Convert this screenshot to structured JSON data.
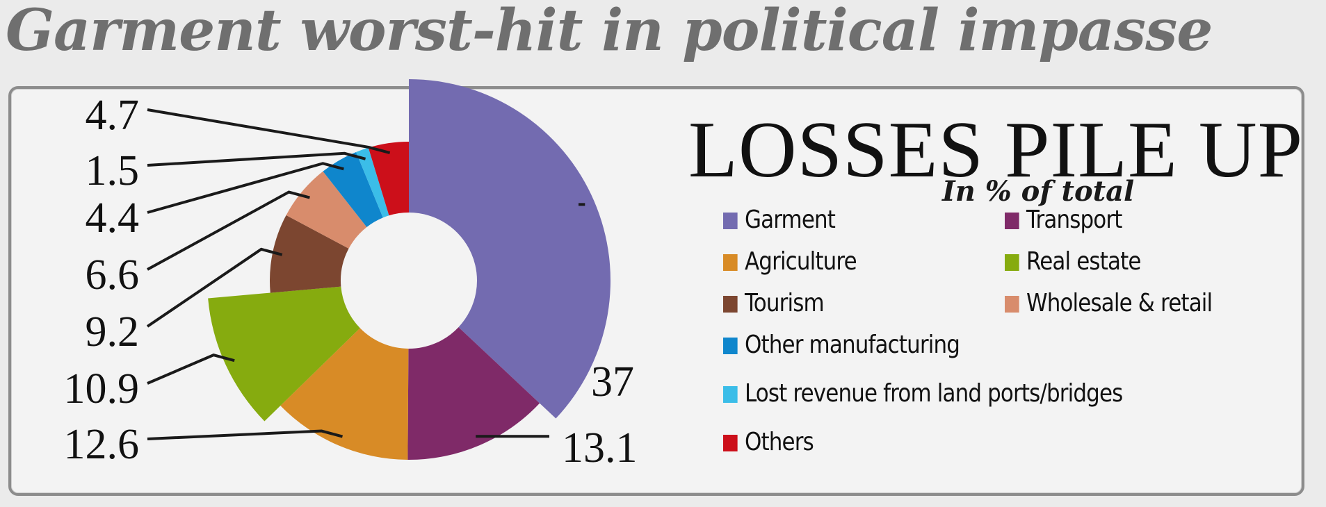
{
  "headline": "Garment worst-hit in political impasse",
  "chart_data": {
    "type": "pie",
    "title": "LOSSES PILE UP",
    "subtitle": "In % of total",
    "slices": [
      {
        "label": "Garment",
        "value": 37,
        "value_label": "37",
        "color": "#736bb0"
      },
      {
        "label": "Transport",
        "value": 13.1,
        "value_label": "13.1",
        "color": "#7f2a68"
      },
      {
        "label": "Agriculture",
        "value": 12.6,
        "value_label": "12.6",
        "color": "#d88b26"
      },
      {
        "label": "Real estate",
        "value": 10.9,
        "value_label": "10.9",
        "color": "#86ab0f"
      },
      {
        "label": "Tourism",
        "value": 9.2,
        "value_label": "9.2",
        "color": "#7c4630"
      },
      {
        "label": "Wholesale & retail",
        "value": 6.6,
        "value_label": "6.6",
        "color": "#d88c6c"
      },
      {
        "label": "Other manufacturing",
        "value": 4.4,
        "value_label": "4.4",
        "color": "#0f86cc"
      },
      {
        "label": "Lost revenue from land ports/bridges",
        "value": 1.5,
        "value_label": "1.5",
        "color": "#3bbde8"
      },
      {
        "label": "Others",
        "value": 4.7,
        "value_label": "4.7",
        "color": "#cc0f1a"
      }
    ],
    "legend_position": "right"
  }
}
